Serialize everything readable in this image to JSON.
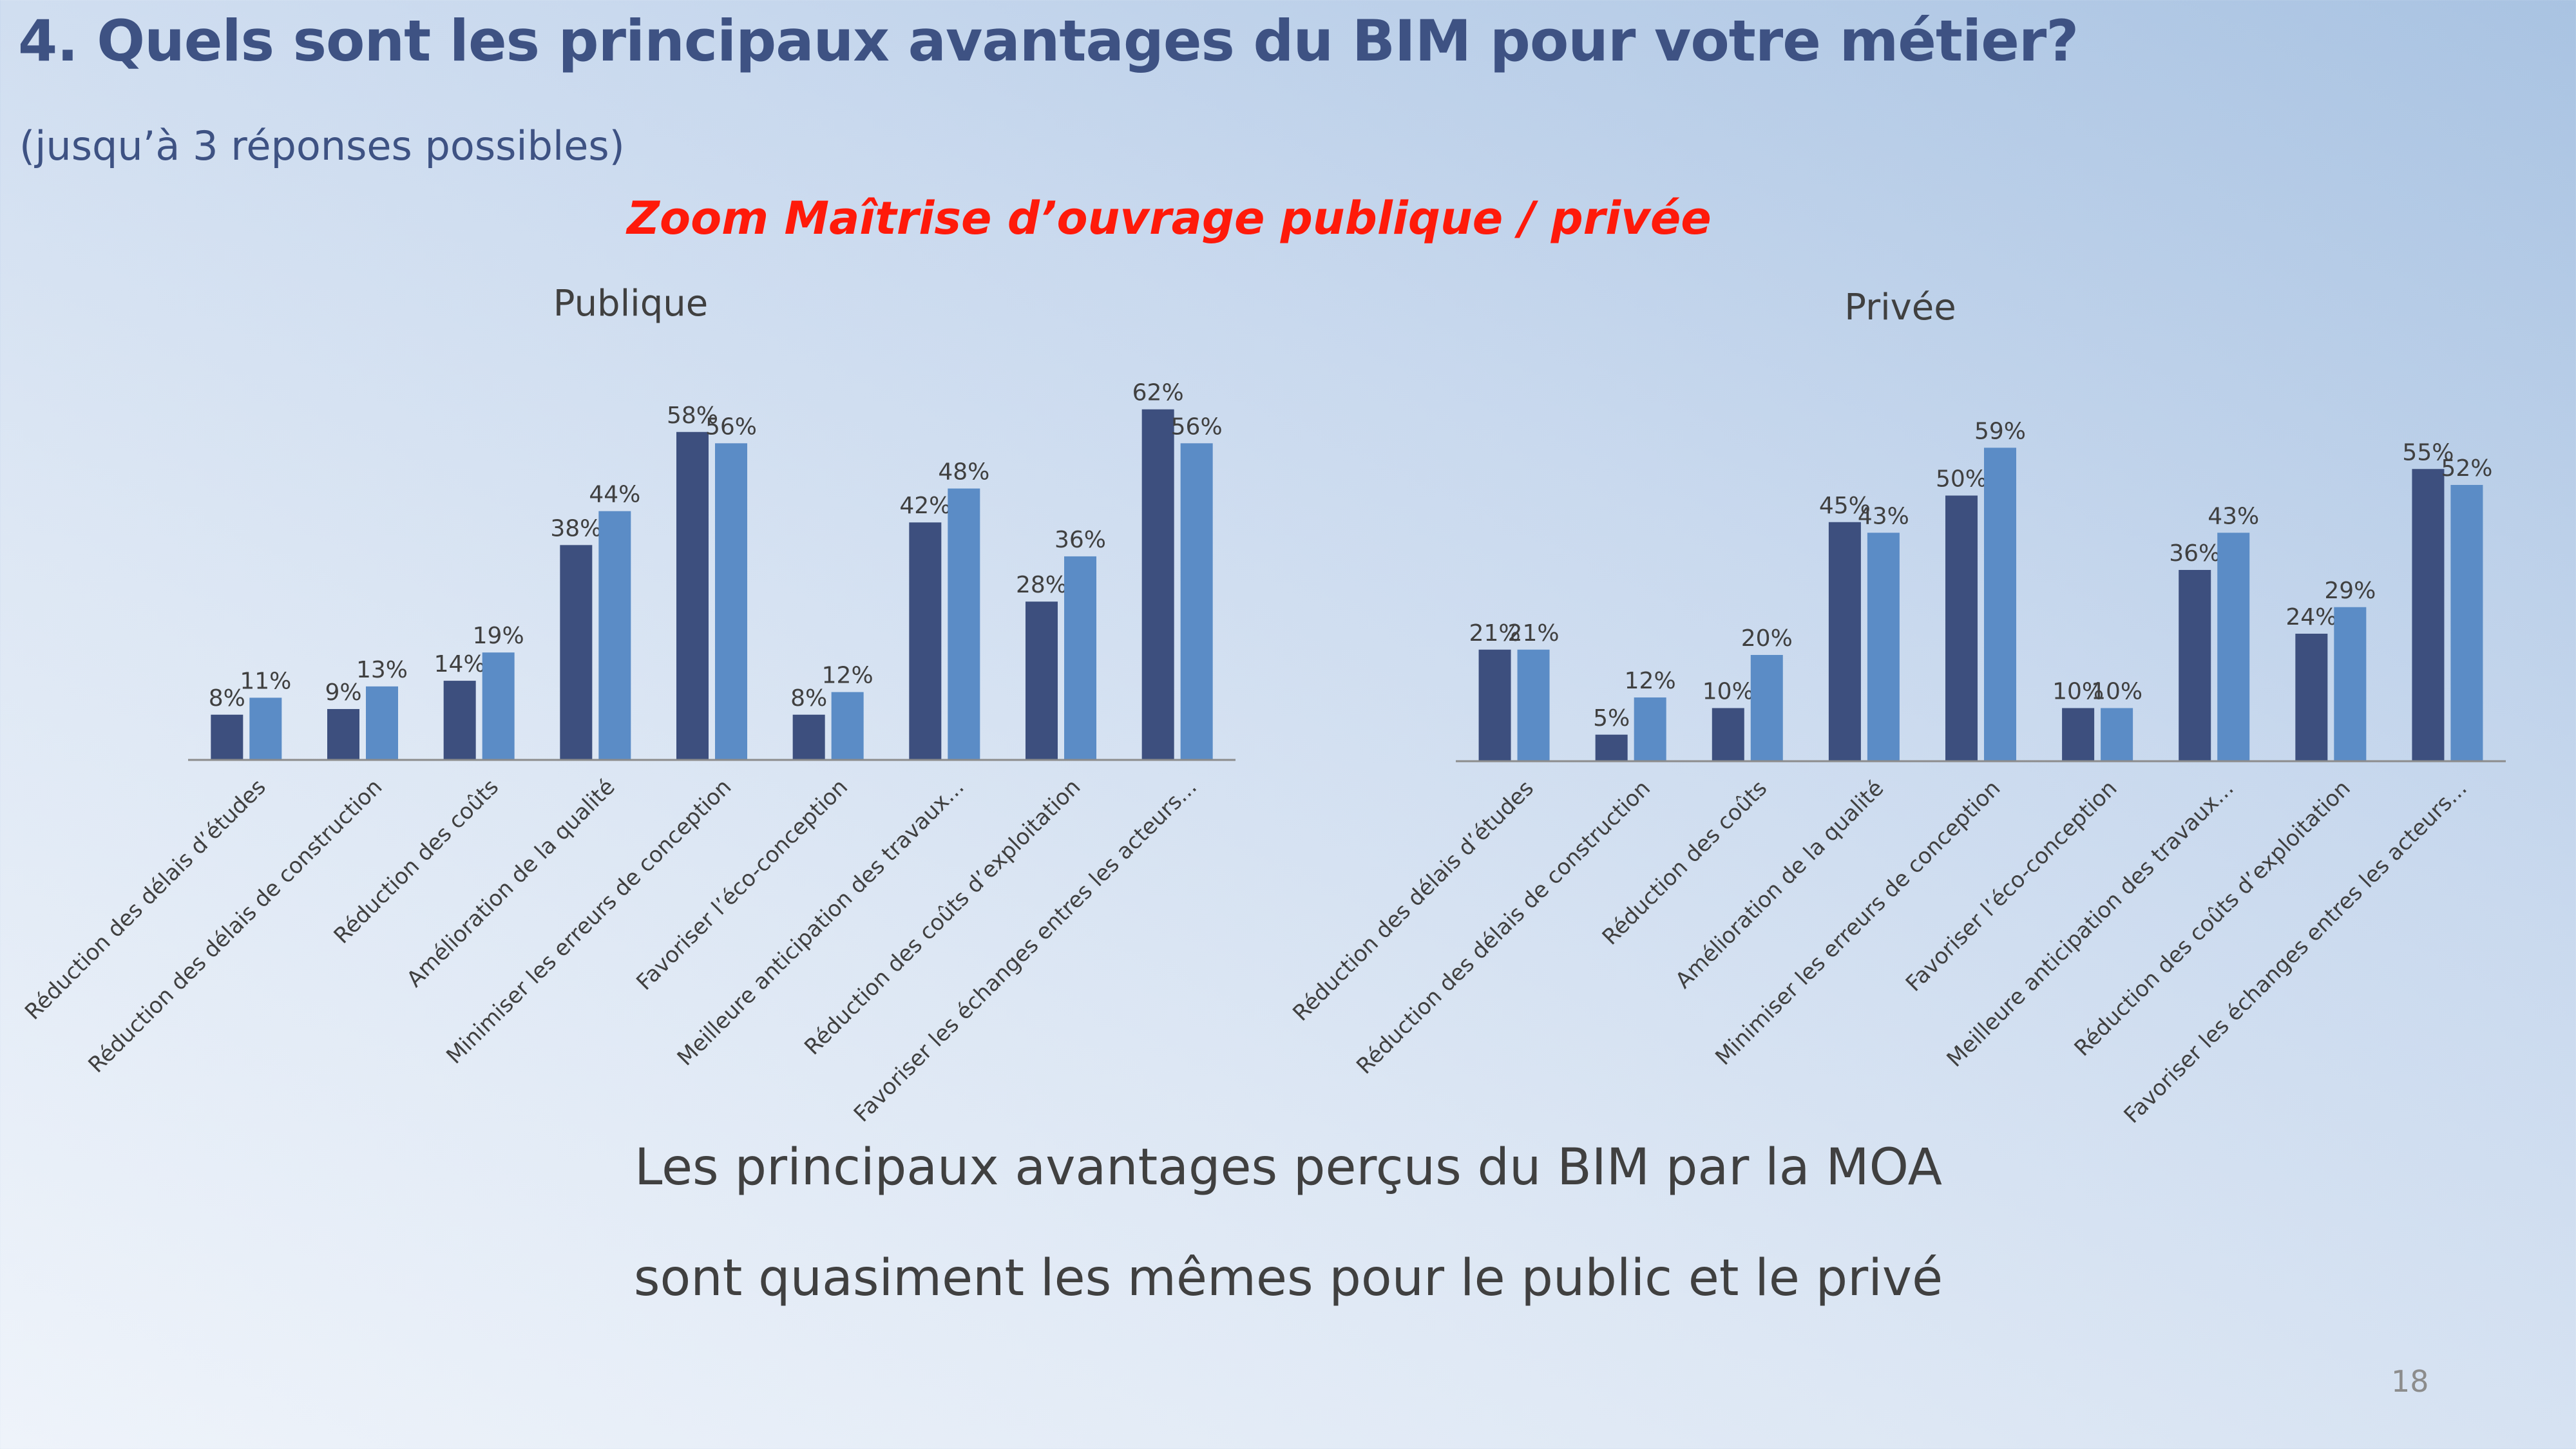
{
  "slide": {
    "title": "4. Quels sont les principaux avantages du BIM pour votre métier?",
    "subtitle": "(jusqu’à 3 réponses possibles)",
    "zoom_title": "Zoom Maîtrise d’ouvrage publique / privée",
    "conclusion_line1": "Les principaux avantages perçus du BIM par la MOA",
    "conclusion_line2": "sont quasiment les mêmes pour le public et le privé",
    "page_number": "18"
  },
  "colors": {
    "series_dark": "#3d4f7e",
    "series_light": "#5b8cc6",
    "axis": "#8c8c8c"
  },
  "chart_data": [
    {
      "type": "bar",
      "title": "Publique",
      "categories": [
        "Réduction des délais d’études",
        "Réduction des délais de construction",
        "Réduction des coûts",
        "Amélioration de la qualité",
        "Minimiser les erreurs de conception",
        "Favoriser l’éco-conception",
        "Meilleure anticipation des travaux...",
        "Réduction des coûts d’exploitation",
        "Favoriser les échanges entres les acteurs..."
      ],
      "series": [
        {
          "values": [
            8,
            9,
            14,
            38,
            58,
            8,
            42,
            28,
            62
          ],
          "labels": [
            "8%",
            "9%",
            "14%",
            "38%",
            "58%",
            "8%",
            "42%",
            "28%",
            "62%"
          ]
        },
        {
          "values": [
            11,
            13,
            19,
            44,
            56,
            12,
            48,
            36,
            56
          ],
          "labels": [
            "11%",
            "13%",
            "19%",
            "44%",
            "56%",
            "12%",
            "48%",
            "36%",
            "56%"
          ]
        }
      ],
      "ylim": [
        0,
        70
      ],
      "grid": false
    },
    {
      "type": "bar",
      "title": "Privée",
      "categories": [
        "Réduction des délais d’études",
        "Réduction des délais de construction",
        "Réduction des coûts",
        "Amélioration de la qualité",
        "Minimiser les erreurs de conception",
        "Favoriser l’éco-conception",
        "Meilleure anticipation des travaux...",
        "Réduction des coûts d’exploitation",
        "Favoriser les échanges entres les acteurs..."
      ],
      "series": [
        {
          "values": [
            21,
            5,
            10,
            45,
            50,
            10,
            36,
            24,
            55
          ],
          "labels": [
            "21%",
            "5%",
            "10%",
            "45%",
            "50%",
            "10%",
            "36%",
            "24%",
            "55%"
          ]
        },
        {
          "values": [
            21,
            12,
            20,
            43,
            59,
            10,
            43,
            29,
            52
          ],
          "labels": [
            "21%",
            "12%",
            "20%",
            "43%",
            "59%",
            "10%",
            "43%",
            "29%",
            "52%"
          ]
        }
      ],
      "ylim": [
        0,
        70
      ],
      "grid": false
    }
  ]
}
